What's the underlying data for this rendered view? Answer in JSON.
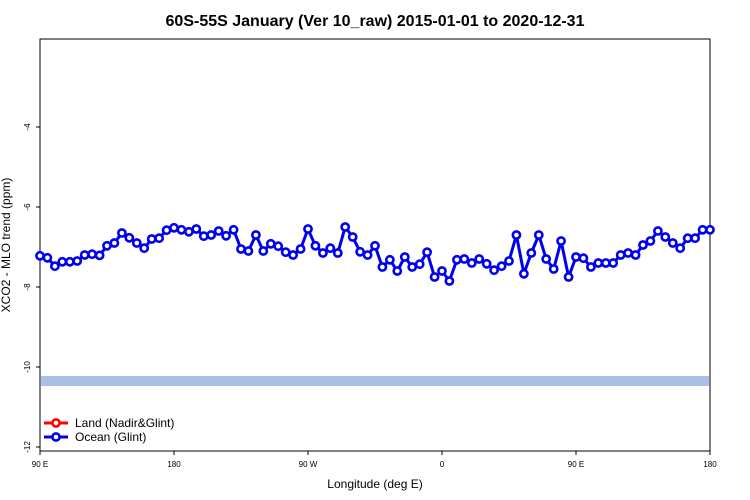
{
  "chart_data": {
    "type": "line",
    "title": "60S-55S January (Ver 10_raw)   2015-01-01 to 2020-12-31",
    "xlabel": "Longitude (deg E)",
    "ylabel": "XCO2 - MLO trend (ppm)",
    "ylim": [
      -12.1,
      -1.8
    ],
    "yticks": [
      -12,
      -10,
      -8,
      -6,
      -4
    ],
    "x_ticks": [
      {
        "value": 90,
        "label": "90 E"
      },
      {
        "value": 180,
        "label": "180"
      },
      {
        "value": 270,
        "label": "90 W"
      },
      {
        "value": 360,
        "label": "0"
      },
      {
        "value": 450,
        "label": "90 E"
      },
      {
        "value": 540,
        "label": "180"
      }
    ],
    "xlim": [
      90,
      540
    ],
    "band": {
      "value": -10.35,
      "color": "#a9bfe3"
    },
    "legend_position": "bottom-left",
    "series": [
      {
        "name": "Land (Nadir&Glint)",
        "color": "#ff0000",
        "x": [],
        "values": []
      },
      {
        "name": "Ocean (Glint)",
        "color": "#0000ee",
        "x": [
          90,
          95,
          100,
          105,
          110,
          115,
          120,
          125,
          130,
          135,
          140,
          145,
          150,
          155,
          160,
          165,
          170,
          175,
          180,
          185,
          190,
          195,
          200,
          205,
          210,
          215,
          220,
          225,
          230,
          235,
          240,
          245,
          250,
          255,
          260,
          265,
          270,
          275,
          280,
          285,
          290,
          295,
          300,
          305,
          310,
          315,
          320,
          325,
          330,
          335,
          340,
          345,
          350,
          355,
          360,
          365,
          370,
          375,
          380,
          385,
          390,
          395,
          400,
          405,
          410,
          415,
          420,
          425,
          430,
          435,
          440,
          445,
          450,
          455,
          460,
          465,
          470,
          475,
          480,
          485,
          490,
          495,
          500,
          505,
          510,
          515,
          520,
          525,
          530,
          535,
          540
        ],
        "values": [
          -7.22,
          -7.27,
          -7.48,
          -7.37,
          -7.37,
          -7.35,
          -7.2,
          -7.18,
          -7.21,
          -6.97,
          -6.9,
          -6.65,
          -6.77,
          -6.9,
          -7.03,
          -6.8,
          -6.78,
          -6.58,
          -6.52,
          -6.57,
          -6.62,
          -6.55,
          -6.73,
          -6.7,
          -6.6,
          -6.72,
          -6.57,
          -7.05,
          -7.1,
          -6.7,
          -7.1,
          -6.92,
          -6.98,
          -7.13,
          -7.2,
          -7.05,
          -6.55,
          -6.97,
          -7.15,
          -7.03,
          -7.15,
          -6.5,
          -6.75,
          -7.12,
          -7.2,
          -6.97,
          -7.5,
          -7.32,
          -7.6,
          -7.25,
          -7.5,
          -7.43,
          -7.13,
          -7.75,
          -7.6,
          -7.85,
          -7.32,
          -7.3,
          -7.4,
          -7.3,
          -7.42,
          -7.58,
          -7.48,
          -7.35,
          -6.7,
          -7.67,
          -7.15,
          -6.7,
          -7.3,
          -7.55,
          -6.85,
          -7.75,
          -7.25,
          -7.28,
          -7.5,
          -7.4,
          -7.4,
          -7.4,
          -7.2,
          -7.15,
          -7.2,
          -6.95,
          -6.85,
          -6.6,
          -6.75,
          -6.9,
          -7.03,
          -6.78,
          -6.78,
          -6.57,
          -6.57
        ]
      }
    ]
  }
}
